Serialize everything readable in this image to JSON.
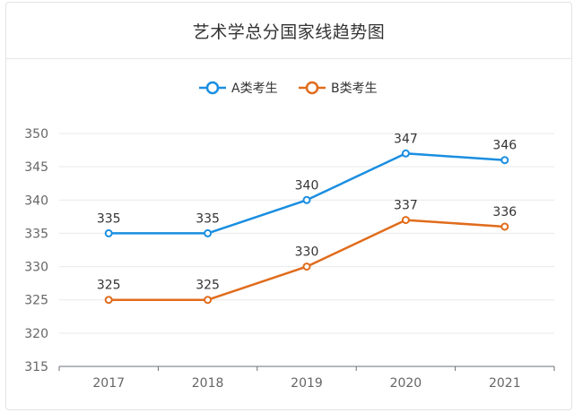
{
  "chart_data": {
    "type": "line",
    "title": "艺术学总分国家线趋势图",
    "categories": [
      "2017",
      "2018",
      "2019",
      "2020",
      "2021"
    ],
    "series": [
      {
        "name": "A类考生",
        "color": "#1a8ee1",
        "values": [
          335,
          335,
          340,
          347,
          346
        ]
      },
      {
        "name": "B类考生",
        "color": "#e06c1c",
        "values": [
          325,
          325,
          330,
          337,
          336
        ]
      }
    ],
    "ylim": [
      315,
      350
    ],
    "yticks": [
      "315",
      "320",
      "325",
      "330",
      "335",
      "340",
      "345",
      "350"
    ],
    "grid": true,
    "legend_position": "top-center"
  }
}
